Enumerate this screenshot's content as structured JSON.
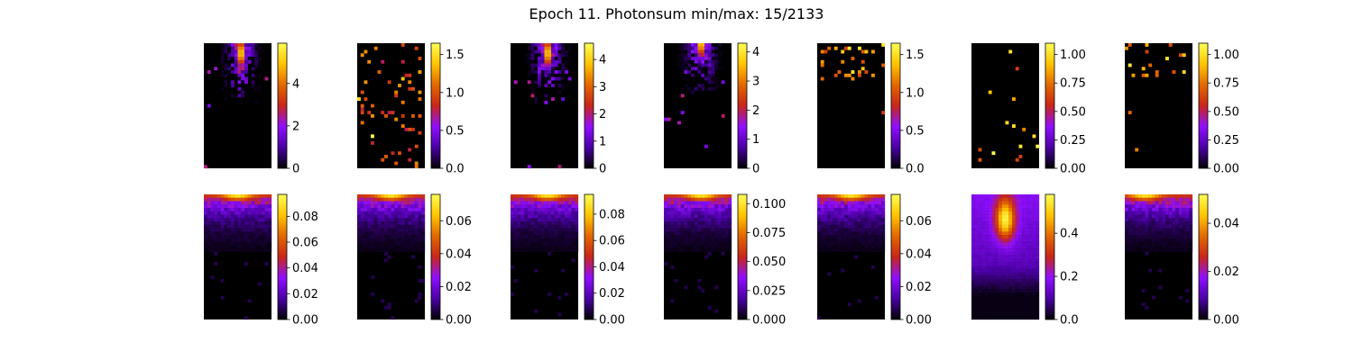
{
  "title": "Epoch 11. Photonsum min/max: 15/2133",
  "colormap": [
    "#000000",
    "#4b00a5",
    "#8f0fff",
    "#c8261a",
    "#e26800",
    "#ffc400",
    "#ffff55"
  ],
  "chart_data": [
    {
      "type": "heatmap",
      "row": 1,
      "col": 1,
      "pattern": "spot",
      "spot": [
        0.55,
        0.08
      ],
      "clim": [
        0,
        5.9
      ],
      "ticks": [
        "0",
        "2",
        "4"
      ],
      "tick_values": [
        0,
        2,
        4
      ]
    },
    {
      "type": "heatmap",
      "row": 1,
      "col": 2,
      "pattern": "sparse",
      "clim": [
        0,
        1.65
      ],
      "ticks": [
        "0.0",
        "0.5",
        "1.0",
        "1.5"
      ],
      "tick_values": [
        0,
        0.5,
        1.0,
        1.5
      ]
    },
    {
      "type": "heatmap",
      "row": 1,
      "col": 3,
      "pattern": "spot",
      "spot": [
        0.55,
        0.08
      ],
      "clim": [
        0,
        4.6
      ],
      "ticks": [
        "0",
        "1",
        "2",
        "3",
        "4"
      ],
      "tick_values": [
        0,
        1,
        2,
        3,
        4
      ]
    },
    {
      "type": "heatmap",
      "row": 1,
      "col": 4,
      "pattern": "spot",
      "spot": [
        0.55,
        0.0
      ],
      "clim": [
        0,
        4.3
      ],
      "ticks": [
        "0",
        "1",
        "2",
        "3",
        "4"
      ],
      "tick_values": [
        0,
        1,
        2,
        3,
        4
      ]
    },
    {
      "type": "heatmap",
      "row": 1,
      "col": 5,
      "pattern": "sparse-top",
      "clim": [
        0,
        1.65
      ],
      "ticks": [
        "0.0",
        "0.5",
        "1.0",
        "1.5"
      ],
      "tick_values": [
        0,
        0.5,
        1.0,
        1.5
      ]
    },
    {
      "type": "heatmap",
      "row": 1,
      "col": 6,
      "pattern": "few",
      "clim": [
        0,
        1.1
      ],
      "ticks": [
        "0.00",
        "0.25",
        "0.50",
        "0.75",
        "1.00"
      ],
      "tick_values": [
        0,
        0.25,
        0.5,
        0.75,
        1.0
      ]
    },
    {
      "type": "heatmap",
      "row": 1,
      "col": 7,
      "pattern": "sparse-top",
      "clim": [
        0,
        1.1
      ],
      "ticks": [
        "0.00",
        "0.25",
        "0.50",
        "0.75",
        "1.00"
      ],
      "tick_values": [
        0,
        0.25,
        0.5,
        0.75,
        1.0
      ]
    },
    {
      "type": "heatmap",
      "row": 2,
      "col": 1,
      "pattern": "gradient",
      "hot": [
        0.5,
        0.02
      ],
      "clim": [
        0,
        0.097
      ],
      "ticks": [
        "0.00",
        "0.02",
        "0.04",
        "0.06",
        "0.08"
      ],
      "tick_values": [
        0,
        0.02,
        0.04,
        0.06,
        0.08
      ]
    },
    {
      "type": "heatmap",
      "row": 2,
      "col": 2,
      "pattern": "gradient",
      "hot": [
        0.5,
        0.02
      ],
      "clim": [
        0,
        0.076
      ],
      "ticks": [
        "0.00",
        "0.02",
        "0.04",
        "0.06"
      ],
      "tick_values": [
        0,
        0.02,
        0.04,
        0.06
      ]
    },
    {
      "type": "heatmap",
      "row": 2,
      "col": 3,
      "pattern": "gradient",
      "hot": [
        0.55,
        0.02
      ],
      "clim": [
        0,
        0.095
      ],
      "ticks": [
        "0.00",
        "0.02",
        "0.04",
        "0.06",
        "0.08"
      ],
      "tick_values": [
        0,
        0.02,
        0.04,
        0.06,
        0.08
      ]
    },
    {
      "type": "heatmap",
      "row": 2,
      "col": 4,
      "pattern": "gradient",
      "hot": [
        0.55,
        0.0
      ],
      "clim": [
        0,
        0.108
      ],
      "ticks": [
        "0.000",
        "0.025",
        "0.050",
        "0.075",
        "0.100"
      ],
      "tick_values": [
        0,
        0.025,
        0.05,
        0.075,
        0.1
      ]
    },
    {
      "type": "heatmap",
      "row": 2,
      "col": 5,
      "pattern": "gradient",
      "hot": [
        0.5,
        0.02
      ],
      "clim": [
        0,
        0.076
      ],
      "ticks": [
        "0.00",
        "0.02",
        "0.04",
        "0.06"
      ],
      "tick_values": [
        0,
        0.02,
        0.04,
        0.06
      ]
    },
    {
      "type": "heatmap",
      "row": 2,
      "col": 6,
      "pattern": "blob",
      "hot": [
        0.5,
        0.2
      ],
      "clim": [
        0,
        0.58
      ],
      "ticks": [
        "0.0",
        "0.2",
        "0.4"
      ],
      "tick_values": [
        0,
        0.2,
        0.4
      ]
    },
    {
      "type": "heatmap",
      "row": 2,
      "col": 7,
      "pattern": "gradient",
      "hot": [
        0.3,
        0.02
      ],
      "clim": [
        0,
        0.052
      ],
      "ticks": [
        "0.00",
        "0.02",
        "0.04"
      ],
      "tick_values": [
        0,
        0.02,
        0.04
      ]
    }
  ]
}
